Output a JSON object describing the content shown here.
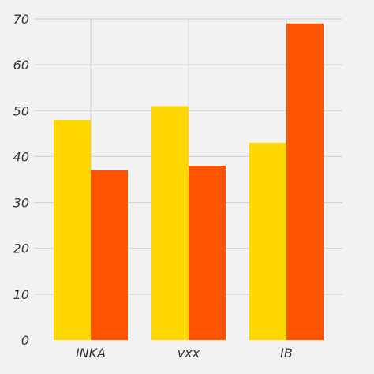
{
  "chart_data": {
    "type": "bar",
    "categories": [
      "INKA",
      "vxx",
      "IB"
    ],
    "series": [
      {
        "values": [
          48,
          51,
          43
        ],
        "color": "#ffd700"
      },
      {
        "values": [
          37,
          38,
          69
        ],
        "color": "#ff5500"
      }
    ],
    "ylim": [
      0,
      70
    ],
    "yticks": [
      0,
      10,
      20,
      30,
      40,
      50,
      60,
      70
    ],
    "grid": true,
    "background": "#f2f2f2",
    "title": "",
    "xlabel": "",
    "ylabel": ""
  }
}
